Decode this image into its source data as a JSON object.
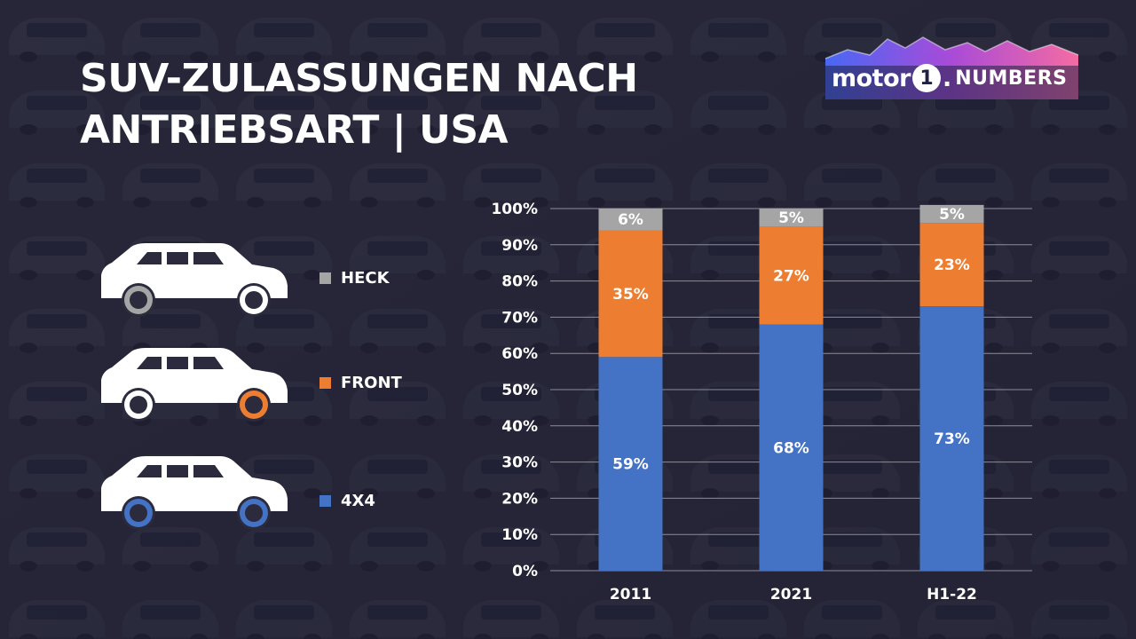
{
  "title": {
    "line1": "SUV-ZULASSUNGEN NACH",
    "line2": "ANTRIEBSART | USA"
  },
  "logo": {
    "brand": "motor",
    "number": "1",
    "dot": ".",
    "suffix": "NUMBERS"
  },
  "legend": [
    {
      "label": "HECK",
      "color": "#a5a5a5",
      "icon": "suv-rear-wheel-drive-icon"
    },
    {
      "label": "FRONT",
      "color": "#ed7d31",
      "icon": "suv-front-wheel-drive-icon"
    },
    {
      "label": "4X4",
      "color": "#4472c4",
      "icon": "suv-all-wheel-drive-icon"
    }
  ],
  "colors": {
    "background": "#2b2b3d",
    "heck": "#a5a5a5",
    "front": "#ed7d31",
    "awd": "#4472c4",
    "text": "#ffffff",
    "gridline": "#8c8c99"
  },
  "chart_data": {
    "type": "bar",
    "stacked": true,
    "categories": [
      "2011",
      "2021",
      "H1-22"
    ],
    "series": [
      {
        "name": "4X4",
        "values": [
          59,
          68,
          73
        ],
        "labels": [
          "59%",
          "68%",
          "73%"
        ],
        "color": "#4472c4"
      },
      {
        "name": "FRONT",
        "values": [
          35,
          27,
          23
        ],
        "labels": [
          "35%",
          "27%",
          "23%"
        ],
        "color": "#ed7d31"
      },
      {
        "name": "HECK",
        "values": [
          6,
          5,
          5
        ],
        "labels": [
          "6%",
          "5%",
          "5%"
        ],
        "color": "#a5a5a5"
      }
    ],
    "ylim": [
      0,
      100
    ],
    "yticks": [
      0,
      10,
      20,
      30,
      40,
      50,
      60,
      70,
      80,
      90,
      100
    ],
    "ytick_labels": [
      "0%",
      "10%",
      "20%",
      "30%",
      "40%",
      "50%",
      "60%",
      "70%",
      "80%",
      "90%",
      "100%"
    ],
    "grid": true,
    "legend_position": "left"
  }
}
